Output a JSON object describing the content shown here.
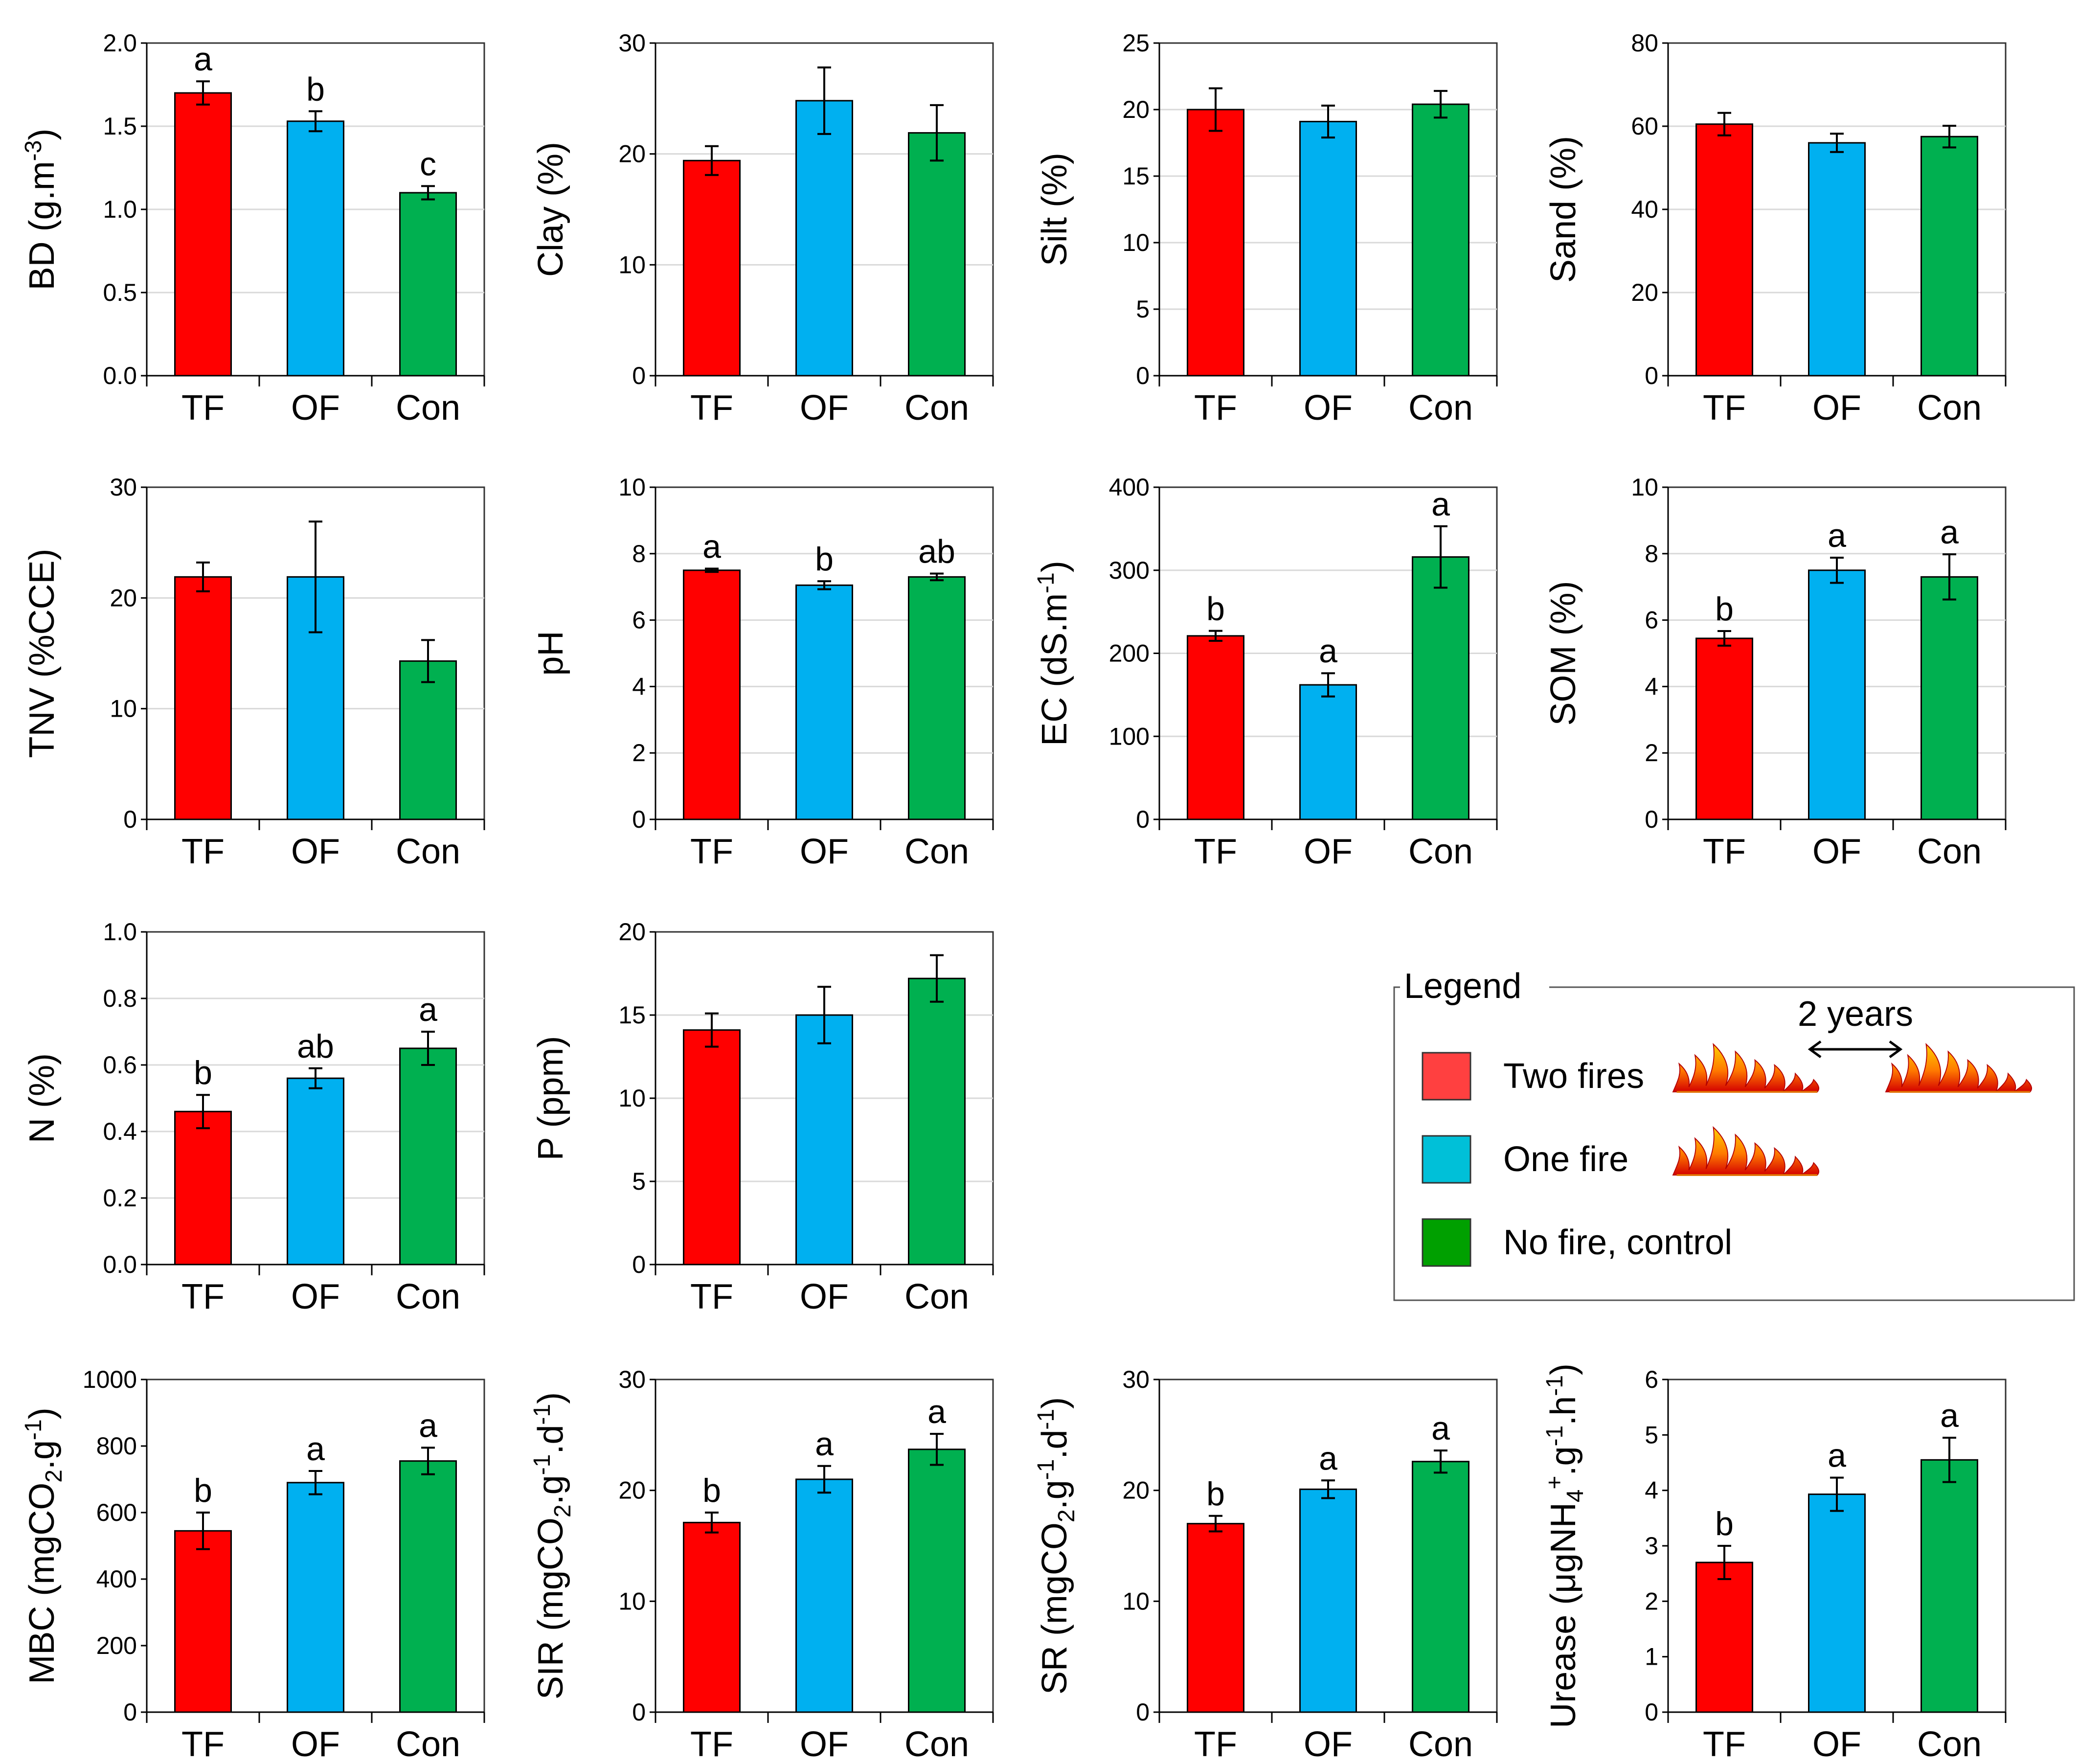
{
  "chart_data": [
    {
      "type": "bar",
      "id": "bd",
      "categories": [
        "TF",
        "OF",
        "Con"
      ],
      "values": [
        1.7,
        1.53,
        1.1
      ],
      "errors": [
        0.07,
        0.06,
        0.04
      ],
      "letters": [
        "a",
        "b",
        "c"
      ],
      "ylabel": [
        "BD (g.m",
        {
          "sup": "-3"
        },
        ")"
      ],
      "ylim": [
        0,
        2
      ],
      "yticks": [
        0,
        0.5,
        1,
        1.5,
        2
      ],
      "yticklabels": [
        "0.0",
        "0.5",
        "1.0",
        "1.5",
        "2.0"
      ],
      "grid": true
    },
    {
      "type": "bar",
      "id": "clay",
      "categories": [
        "TF",
        "OF",
        "Con"
      ],
      "values": [
        19.4,
        24.8,
        21.9
      ],
      "errors": [
        1.3,
        3.0,
        2.5
      ],
      "letters": [
        "",
        "",
        ""
      ],
      "ylabel": [
        "Clay (%)"
      ],
      "ylim": [
        0,
        30
      ],
      "yticks": [
        0,
        10,
        20,
        30
      ],
      "yticklabels": [
        "0",
        "10",
        "20",
        "30"
      ],
      "grid": true
    },
    {
      "type": "bar",
      "id": "silt",
      "categories": [
        "TF",
        "OF",
        "Con"
      ],
      "values": [
        20,
        19.1,
        20.4
      ],
      "errors": [
        1.6,
        1.2,
        1.0
      ],
      "letters": [
        "",
        "",
        ""
      ],
      "ylabel": [
        "Silt (%)"
      ],
      "ylim": [
        0,
        25
      ],
      "yticks": [
        0,
        5,
        10,
        15,
        20,
        25
      ],
      "yticklabels": [
        "0",
        "5",
        "10",
        "15",
        "20",
        "25"
      ],
      "grid": true
    },
    {
      "type": "bar",
      "id": "sand",
      "categories": [
        "TF",
        "OF",
        "Con"
      ],
      "values": [
        60.5,
        56,
        57.5
      ],
      "errors": [
        2.7,
        2.2,
        2.6
      ],
      "letters": [
        "",
        "",
        ""
      ],
      "ylabel": [
        "Sand (%)"
      ],
      "ylim": [
        0,
        80
      ],
      "yticks": [
        0,
        20,
        40,
        60,
        80
      ],
      "yticklabels": [
        "0",
        "20",
        "40",
        "60",
        "80"
      ],
      "grid": true
    },
    {
      "type": "bar",
      "id": "tnv",
      "categories": [
        "TF",
        "OF",
        "Con"
      ],
      "values": [
        21.9,
        21.9,
        14.3
      ],
      "errors": [
        1.3,
        5.0,
        1.9
      ],
      "letters": [
        "",
        "",
        ""
      ],
      "ylabel": [
        "TNV (%CCE)"
      ],
      "ylim": [
        0,
        30
      ],
      "yticks": [
        0,
        10,
        20,
        30
      ],
      "yticklabels": [
        "0",
        "10",
        "20",
        "30"
      ],
      "grid": true
    },
    {
      "type": "bar",
      "id": "ph",
      "categories": [
        "TF",
        "OF",
        "Con"
      ],
      "values": [
        7.5,
        7.05,
        7.3
      ],
      "errors": [
        0.05,
        0.12,
        0.1
      ],
      "letters": [
        "a",
        "b",
        "ab"
      ],
      "ylabel": [
        "pH"
      ],
      "ylim": [
        0,
        10
      ],
      "yticks": [
        0,
        2,
        4,
        6,
        8,
        10
      ],
      "yticklabels": [
        "0",
        "2",
        "4",
        "6",
        "8",
        "10"
      ],
      "grid": true
    },
    {
      "type": "bar",
      "id": "ec",
      "categories": [
        "TF",
        "OF",
        "Con"
      ],
      "values": [
        221,
        162,
        316
      ],
      "errors": [
        6,
        14,
        37
      ],
      "letters": [
        "b",
        "a",
        "a"
      ],
      "ylabel": [
        "EC (dS.m",
        {
          "sup": "-1"
        },
        ")"
      ],
      "ylim": [
        0,
        400
      ],
      "yticks": [
        0,
        100,
        200,
        300,
        400
      ],
      "yticklabels": [
        "0",
        "100",
        "200",
        "300",
        "400"
      ],
      "grid": true
    },
    {
      "type": "bar",
      "id": "som",
      "categories": [
        "TF",
        "OF",
        "Con"
      ],
      "values": [
        5.45,
        7.5,
        7.3
      ],
      "errors": [
        0.22,
        0.38,
        0.68
      ],
      "letters": [
        "b",
        "a",
        "a"
      ],
      "ylabel": [
        "SOM (%)"
      ],
      "ylim": [
        0,
        10
      ],
      "yticks": [
        0,
        2,
        4,
        6,
        8,
        10
      ],
      "yticklabels": [
        "0",
        "2",
        "4",
        "6",
        "8",
        "10"
      ],
      "grid": true
    },
    {
      "type": "bar",
      "id": "n",
      "categories": [
        "TF",
        "OF",
        "Con"
      ],
      "values": [
        0.46,
        0.56,
        0.65
      ],
      "errors": [
        0.05,
        0.03,
        0.05
      ],
      "letters": [
        "b",
        "ab",
        "a"
      ],
      "ylabel": [
        "N (%)"
      ],
      "ylim": [
        0,
        1
      ],
      "yticks": [
        0,
        0.2,
        0.4,
        0.6,
        0.8,
        1
      ],
      "yticklabels": [
        "0.0",
        "0.2",
        "0.4",
        "0.6",
        "0.8",
        "1.0"
      ],
      "grid": true
    },
    {
      "type": "bar",
      "id": "p",
      "categories": [
        "TF",
        "OF",
        "Con"
      ],
      "values": [
        14.1,
        15,
        17.2
      ],
      "errors": [
        1.0,
        1.7,
        1.4
      ],
      "letters": [
        "",
        "",
        ""
      ],
      "ylabel": [
        "P (ppm)"
      ],
      "ylim": [
        0,
        20
      ],
      "yticks": [
        0,
        5,
        10,
        15,
        20
      ],
      "yticklabels": [
        "0",
        "5",
        "10",
        "15",
        "20"
      ],
      "grid": true
    },
    {
      "type": "bar",
      "id": "mbc",
      "categories": [
        "TF",
        "OF",
        "Con"
      ],
      "values": [
        545,
        690,
        755
      ],
      "errors": [
        55,
        35,
        40
      ],
      "letters": [
        "b",
        "a",
        "a"
      ],
      "ylabel": [
        "MBC (mgCO",
        {
          "sub": "2"
        },
        ".g",
        {
          "sup": "-1"
        },
        ")"
      ],
      "ylim": [
        0,
        1000
      ],
      "yticks": [
        0,
        200,
        400,
        600,
        800,
        1000
      ],
      "yticklabels": [
        "0",
        "200",
        "400",
        "600",
        "800",
        "1000"
      ],
      "grid": false
    },
    {
      "type": "bar",
      "id": "sir",
      "categories": [
        "TF",
        "OF",
        "Con"
      ],
      "values": [
        17.1,
        21,
        23.7
      ],
      "errors": [
        0.9,
        1.2,
        1.4
      ],
      "letters": [
        "b",
        "a",
        "a"
      ],
      "ylabel": [
        "SIR (mgCO",
        {
          "sub": "2"
        },
        ".g",
        {
          "sup": "-1"
        },
        ".d",
        {
          "sup": "-1"
        },
        ")"
      ],
      "ylim": [
        0,
        30
      ],
      "yticks": [
        0,
        10,
        20,
        30
      ],
      "yticklabels": [
        "0",
        "10",
        "20",
        "30"
      ],
      "grid": false
    },
    {
      "type": "bar",
      "id": "sr",
      "categories": [
        "TF",
        "OF",
        "Con"
      ],
      "values": [
        17,
        20.1,
        22.6
      ],
      "errors": [
        0.7,
        0.8,
        1.0
      ],
      "letters": [
        "b",
        "a",
        "a"
      ],
      "ylabel": [
        "SR (mgCO",
        {
          "sub": "2"
        },
        ".g",
        {
          "sup": "-1"
        },
        ".d",
        {
          "sup": "-1"
        },
        ")"
      ],
      "ylim": [
        0,
        30
      ],
      "yticks": [
        0,
        10,
        20,
        30
      ],
      "yticklabels": [
        "0",
        "10",
        "20",
        "30"
      ],
      "grid": false
    },
    {
      "type": "bar",
      "id": "urease",
      "categories": [
        "TF",
        "OF",
        "Con"
      ],
      "values": [
        2.7,
        3.93,
        4.55
      ],
      "errors": [
        0.3,
        0.3,
        0.4
      ],
      "letters": [
        "b",
        "a",
        "a"
      ],
      "ylabel": [
        "Urease (μgNH",
        {
          "sub": "4"
        },
        {
          "sup": "+"
        },
        ".g",
        {
          "sup": "-1"
        },
        ".h",
        {
          "sup": "-1"
        },
        ")"
      ],
      "ylim": [
        0,
        6
      ],
      "yticks": [
        0,
        1,
        2,
        3,
        4,
        5,
        6
      ],
      "yticklabels": [
        "0",
        "1",
        "2",
        "3",
        "4",
        "5",
        "6"
      ],
      "grid": false
    }
  ],
  "series_colors": {
    "TF": "#ff0000",
    "OF": "#00b0f0",
    "Con": "#00b050"
  },
  "legend": {
    "title": "Legend",
    "interval_label": "2 years",
    "items": [
      {
        "label": "Two fires",
        "color": "#ff4040",
        "fire_icons": 2
      },
      {
        "label": "One fire",
        "color": "#00c0d8",
        "fire_icons": 1
      },
      {
        "label": "No fire, control",
        "color": "#00a000",
        "fire_icons": 0
      }
    ]
  }
}
